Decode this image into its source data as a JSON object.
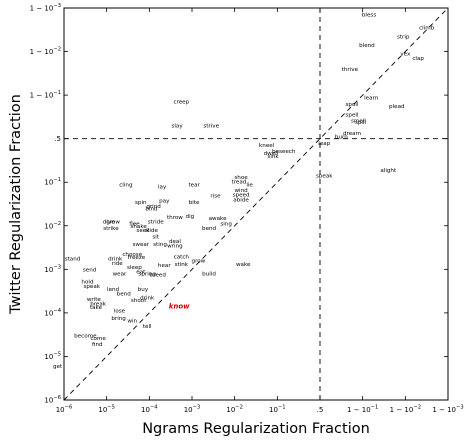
{
  "chart_data": {
    "type": "scatter",
    "xlabel": "Ngrams Regularization Fraction",
    "ylabel": "Twitter Regularization Fraction",
    "axis_scale": "logit",
    "xlim": [
      -6,
      3
    ],
    "ylim": [
      -6,
      3
    ],
    "x_ticks": [
      {
        "v": -6,
        "base": "10",
        "exp": "−6"
      },
      {
        "v": -5,
        "base": "10",
        "exp": "−5"
      },
      {
        "v": -4,
        "base": "10",
        "exp": "−4"
      },
      {
        "v": -3,
        "base": "10",
        "exp": "−3"
      },
      {
        "v": -2,
        "base": "10",
        "exp": "−2"
      },
      {
        "v": -1,
        "base": "10",
        "exp": "−1"
      },
      {
        "v": 0,
        "base": ".5",
        "exp": ""
      },
      {
        "v": 1,
        "base": "1 − 10",
        "exp": "−1"
      },
      {
        "v": 2,
        "base": "1 − 10",
        "exp": "−2"
      },
      {
        "v": 3,
        "base": "1 − 10",
        "exp": "−3"
      }
    ],
    "y_ticks": [
      {
        "v": -6,
        "base": "10",
        "exp": "−6"
      },
      {
        "v": -5,
        "base": "10",
        "exp": "−5"
      },
      {
        "v": -4,
        "base": "10",
        "exp": "−4"
      },
      {
        "v": -3,
        "base": "10",
        "exp": "−3"
      },
      {
        "v": -2,
        "base": "10",
        "exp": "−2"
      },
      {
        "v": -1,
        "base": "10",
        "exp": "−1"
      },
      {
        "v": 0,
        "base": ".5",
        "exp": ""
      },
      {
        "v": 1,
        "base": "1 − 10",
        "exp": "−1"
      },
      {
        "v": 2,
        "base": "1 − 10",
        "exp": "−2"
      },
      {
        "v": 3,
        "base": "1 − 10",
        "exp": "−3"
      }
    ],
    "reference_lines": {
      "diagonal": true,
      "vertical_at": 0,
      "horizontal_at": 0
    },
    "highlight_color": "#cc0000",
    "points": [
      {
        "w": "bless",
        "x": 1.15,
        "y": 2.85
      },
      {
        "w": "climb",
        "x": 2.5,
        "y": 2.55
      },
      {
        "w": "strip",
        "x": 1.95,
        "y": 2.35
      },
      {
        "w": "blend",
        "x": 1.1,
        "y": 2.15
      },
      {
        "w": "vex",
        "x": 2.0,
        "y": 1.95
      },
      {
        "w": "clap",
        "x": 2.3,
        "y": 1.85
      },
      {
        "w": "thrive",
        "x": 0.7,
        "y": 1.6
      },
      {
        "w": "learn",
        "x": 1.2,
        "y": 0.95
      },
      {
        "w": "spoil",
        "x": 0.75,
        "y": 0.8
      },
      {
        "w": "plead",
        "x": 1.8,
        "y": 0.75
      },
      {
        "w": "spell",
        "x": 0.75,
        "y": 0.55
      },
      {
        "w": "smell",
        "x": 0.9,
        "y": 0.42
      },
      {
        "w": "spill",
        "x": 0.95,
        "y": 0.38
      },
      {
        "w": "dream",
        "x": 0.75,
        "y": 0.13
      },
      {
        "w": "burn",
        "x": 0.5,
        "y": 0.05
      },
      {
        "w": "leap",
        "x": 0.1,
        "y": -0.1
      },
      {
        "w": "creep",
        "x": -3.25,
        "y": 0.85
      },
      {
        "w": "slay",
        "x": -3.35,
        "y": 0.3
      },
      {
        "w": "strive",
        "x": -2.55,
        "y": 0.3
      },
      {
        "w": "kneel",
        "x": -1.25,
        "y": -0.15
      },
      {
        "w": "beseech",
        "x": -0.85,
        "y": -0.28
      },
      {
        "w": "dwell",
        "x": -1.15,
        "y": -0.33
      },
      {
        "w": "sink",
        "x": -1.1,
        "y": -0.4
      },
      {
        "w": "speak",
        "x": 0.1,
        "y": -0.85
      },
      {
        "w": "alight",
        "x": 1.6,
        "y": -0.72
      },
      {
        "w": "shoe",
        "x": -1.85,
        "y": -0.88
      },
      {
        "w": "tread",
        "x": -1.9,
        "y": -0.98
      },
      {
        "w": "lie",
        "x": -1.65,
        "y": -1.05
      },
      {
        "w": "wind",
        "x": -1.85,
        "y": -1.18
      },
      {
        "w": "speed",
        "x": -1.85,
        "y": -1.28
      },
      {
        "w": "abide",
        "x": -1.85,
        "y": -1.4
      },
      {
        "w": "cling",
        "x": -4.55,
        "y": -1.05
      },
      {
        "w": "lay",
        "x": -3.7,
        "y": -1.1
      },
      {
        "w": "tear",
        "x": -2.95,
        "y": -1.05
      },
      {
        "w": "rise",
        "x": -2.45,
        "y": -1.3
      },
      {
        "w": "spin",
        "x": -4.2,
        "y": -1.45
      },
      {
        "w": "pay",
        "x": -3.65,
        "y": -1.42
      },
      {
        "w": "bite",
        "x": -2.95,
        "y": -1.45
      },
      {
        "w": "grind",
        "x": -3.9,
        "y": -1.55
      },
      {
        "w": "bind",
        "x": -3.95,
        "y": -1.6
      },
      {
        "w": "throw",
        "x": -3.4,
        "y": -1.8
      },
      {
        "w": "dig",
        "x": -3.05,
        "y": -1.78
      },
      {
        "w": "awake",
        "x": -2.4,
        "y": -1.82
      },
      {
        "w": "stride",
        "x": -3.85,
        "y": -1.9
      },
      {
        "w": "shake",
        "x": -4.25,
        "y": -2.0
      },
      {
        "w": "seek",
        "x": -4.15,
        "y": -2.1
      },
      {
        "w": "bend",
        "x": -2.6,
        "y": -2.05
      },
      {
        "w": "sing",
        "x": -2.2,
        "y": -1.95
      },
      {
        "w": "sit",
        "x": -3.85,
        "y": -2.25
      },
      {
        "w": "slide",
        "x": -3.95,
        "y": -2.1
      },
      {
        "w": "grow",
        "x": -4.85,
        "y": -1.9
      },
      {
        "w": "strike",
        "x": -4.9,
        "y": -2.05
      },
      {
        "w": "dive",
        "x": -4.95,
        "y": -1.9
      },
      {
        "w": "flee",
        "x": -4.35,
        "y": -1.95
      },
      {
        "w": "deal",
        "x": -3.4,
        "y": -2.35
      },
      {
        "w": "swear",
        "x": -4.2,
        "y": -2.42
      },
      {
        "w": "sting",
        "x": -3.75,
        "y": -2.42
      },
      {
        "w": "wring",
        "x": -3.4,
        "y": -2.45
      },
      {
        "w": "choose",
        "x": -4.4,
        "y": -2.65
      },
      {
        "w": "drink",
        "x": -4.8,
        "y": -2.75
      },
      {
        "w": "freeze",
        "x": -4.3,
        "y": -2.72
      },
      {
        "w": "ride",
        "x": -4.75,
        "y": -2.85
      },
      {
        "w": "stand",
        "x": -5.8,
        "y": -2.75
      },
      {
        "w": "catch",
        "x": -3.25,
        "y": -2.7
      },
      {
        "w": "stink",
        "x": -3.25,
        "y": -2.88
      },
      {
        "w": "grow",
        "x": -2.85,
        "y": -2.8
      },
      {
        "w": "hear",
        "x": -3.65,
        "y": -2.9
      },
      {
        "w": "sleep",
        "x": -4.35,
        "y": -2.95
      },
      {
        "w": "send",
        "x": -5.4,
        "y": -3.0
      },
      {
        "w": "wear",
        "x": -4.7,
        "y": -3.1
      },
      {
        "w": "eat",
        "x": -4.2,
        "y": -3.05
      },
      {
        "w": "spring",
        "x": -4.05,
        "y": -3.1
      },
      {
        "w": "breed",
        "x": -3.8,
        "y": -3.12
      },
      {
        "w": "build",
        "x": -2.6,
        "y": -3.1
      },
      {
        "w": "wake",
        "x": -1.8,
        "y": -2.88
      },
      {
        "w": "hold",
        "x": -5.45,
        "y": -3.28
      },
      {
        "w": "speak",
        "x": -5.35,
        "y": -3.38
      },
      {
        "w": "buy",
        "x": -4.15,
        "y": -3.45
      },
      {
        "w": "lend",
        "x": -4.85,
        "y": -3.45
      },
      {
        "w": "bend",
        "x": -4.6,
        "y": -3.55
      },
      {
        "w": "write",
        "x": -5.3,
        "y": -3.68
      },
      {
        "w": "shoot",
        "x": -4.25,
        "y": -3.7
      },
      {
        "w": "drink",
        "x": -4.05,
        "y": -3.65
      },
      {
        "w": "break",
        "x": -5.2,
        "y": -3.78
      },
      {
        "w": "take",
        "x": -5.25,
        "y": -3.86
      },
      {
        "w": "lose",
        "x": -4.7,
        "y": -3.95
      },
      {
        "w": "bring",
        "x": -4.72,
        "y": -4.12
      },
      {
        "w": "win",
        "x": -4.4,
        "y": -4.18
      },
      {
        "w": "tell",
        "x": -4.05,
        "y": -4.3
      },
      {
        "w": "know",
        "x": -3.3,
        "y": -3.85,
        "hl": true
      },
      {
        "w": "become",
        "x": -5.5,
        "y": -4.52
      },
      {
        "w": "come",
        "x": -5.2,
        "y": -4.58
      },
      {
        "w": "find",
        "x": -5.22,
        "y": -4.72
      },
      {
        "w": "get",
        "x": -6.15,
        "y": -5.22
      }
    ]
  }
}
